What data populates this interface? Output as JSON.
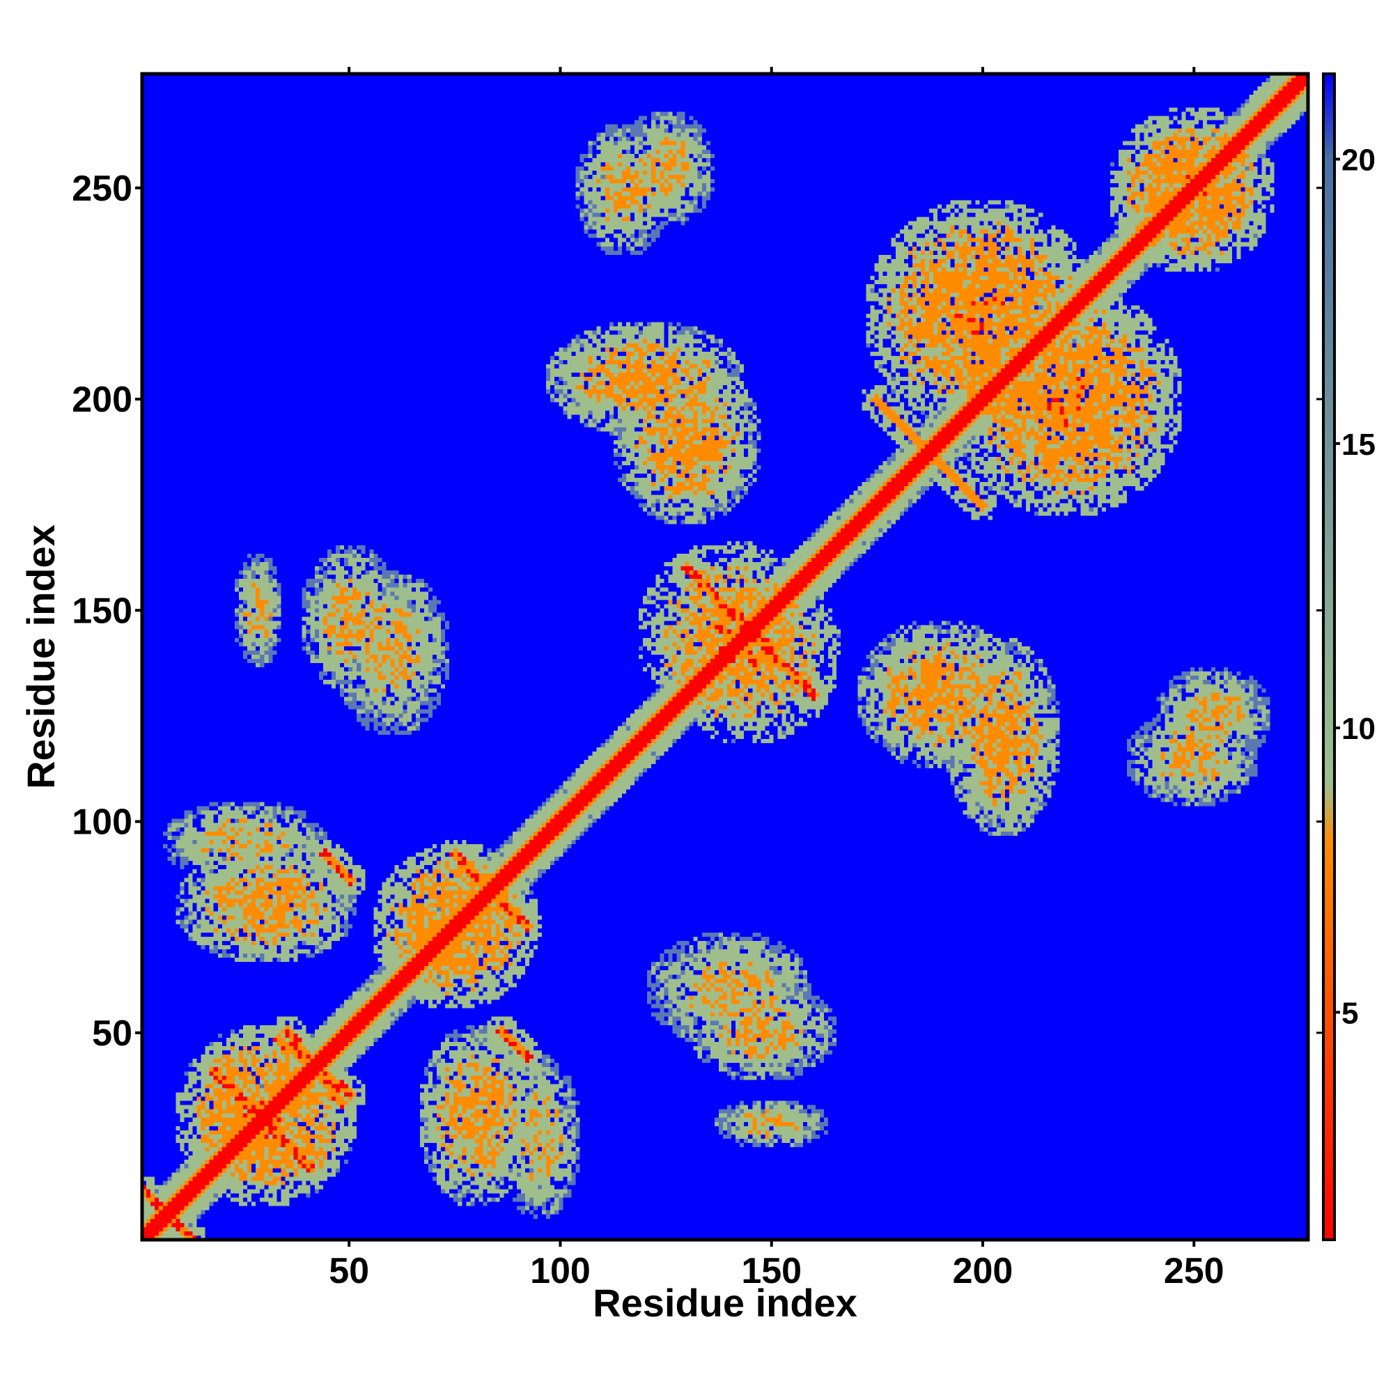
{
  "chart_data": {
    "type": "heatmap",
    "title": "",
    "xlabel": "Residue index",
    "ylabel": "Residue index",
    "xlim": [
      1,
      277
    ],
    "ylim": [
      1,
      277
    ],
    "n_residues": 277,
    "x_ticks": [
      50,
      100,
      150,
      200,
      250
    ],
    "y_ticks": [
      50,
      100,
      150,
      200,
      250
    ],
    "x_tick_labels": [
      "50",
      "100",
      "150",
      "200",
      "250"
    ],
    "y_tick_labels": [
      "50",
      "100",
      "150",
      "200",
      "250"
    ],
    "colorbar": {
      "range": [
        1,
        21.5
      ],
      "ticks": [
        5,
        10,
        15,
        20
      ],
      "tick_labels": [
        "5",
        "10",
        "15",
        "20"
      ],
      "colors": [
        "#ff0000",
        "#ff8c00",
        "#9fbf8f",
        "#4a6fa5",
        "#0000ff"
      ],
      "stops": [
        1,
        8,
        9,
        20,
        21.5
      ]
    },
    "diagonal": {
      "value": 2,
      "color": "#ff0000"
    },
    "background_value": 21.5,
    "contact_regions": [
      {
        "x": 30,
        "y": 30,
        "sx": 22,
        "sy": 22,
        "v": 10
      },
      {
        "x": 75,
        "y": 75,
        "sx": 20,
        "sy": 20,
        "v": 10
      },
      {
        "x": 80,
        "y": 30,
        "sx": 14,
        "sy": 22,
        "v": 11
      },
      {
        "x": 30,
        "y": 80,
        "sx": 22,
        "sy": 14,
        "v": 11
      },
      {
        "x": 140,
        "y": 60,
        "sx": 20,
        "sy": 14,
        "v": 12
      },
      {
        "x": 60,
        "y": 140,
        "sx": 14,
        "sy": 20,
        "v": 12
      },
      {
        "x": 150,
        "y": 28,
        "sx": 14,
        "sy": 6,
        "v": 12
      },
      {
        "x": 28,
        "y": 150,
        "sx": 6,
        "sy": 14,
        "v": 12
      },
      {
        "x": 140,
        "y": 145,
        "sx": 22,
        "sy": 22,
        "v": 10
      },
      {
        "x": 130,
        "y": 190,
        "sx": 18,
        "sy": 20,
        "v": 11
      },
      {
        "x": 190,
        "y": 130,
        "sx": 20,
        "sy": 18,
        "v": 11
      },
      {
        "x": 205,
        "y": 120,
        "sx": 14,
        "sy": 24,
        "v": 11
      },
      {
        "x": 120,
        "y": 205,
        "sx": 24,
        "sy": 14,
        "v": 11
      },
      {
        "x": 200,
        "y": 220,
        "sx": 28,
        "sy": 28,
        "v": 10
      },
      {
        "x": 220,
        "y": 200,
        "sx": 28,
        "sy": 28,
        "v": 10
      },
      {
        "x": 250,
        "y": 250,
        "sx": 20,
        "sy": 20,
        "v": 10
      },
      {
        "x": 255,
        "y": 125,
        "sx": 14,
        "sy": 12,
        "v": 12
      },
      {
        "x": 125,
        "y": 255,
        "sx": 12,
        "sy": 14,
        "v": 12
      },
      {
        "x": 115,
        "y": 250,
        "sx": 12,
        "sy": 16,
        "v": 12
      },
      {
        "x": 250,
        "y": 115,
        "sx": 16,
        "sy": 12,
        "v": 12
      },
      {
        "x": 95,
        "y": 25,
        "sx": 10,
        "sy": 20,
        "v": 12
      },
      {
        "x": 25,
        "y": 95,
        "sx": 20,
        "sy": 10,
        "v": 12
      },
      {
        "x": 50,
        "y": 148,
        "sx": 12,
        "sy": 18,
        "v": 12
      },
      {
        "x": 148,
        "y": 50,
        "sx": 18,
        "sy": 12,
        "v": 12
      }
    ],
    "contact_lines": [
      {
        "x1": 18,
        "y1": 40,
        "x2": 40,
        "y2": 18,
        "v": 5
      },
      {
        "x1": 35,
        "y1": 50,
        "x2": 48,
        "y2": 33,
        "v": 5
      },
      {
        "x1": 75,
        "y1": 92,
        "x2": 92,
        "y2": 75,
        "v": 5
      },
      {
        "x1": 44,
        "y1": 92,
        "x2": 50,
        "y2": 86,
        "v": 5
      },
      {
        "x1": 86,
        "y1": 50,
        "x2": 92,
        "y2": 44,
        "v": 5
      },
      {
        "x1": 130,
        "y1": 160,
        "x2": 160,
        "y2": 130,
        "v": 5
      },
      {
        "x1": 190,
        "y1": 185,
        "x2": 200,
        "y2": 175,
        "v": 6
      },
      {
        "x1": 1,
        "y1": 12,
        "x2": 12,
        "y2": 1,
        "v": 5
      }
    ]
  }
}
